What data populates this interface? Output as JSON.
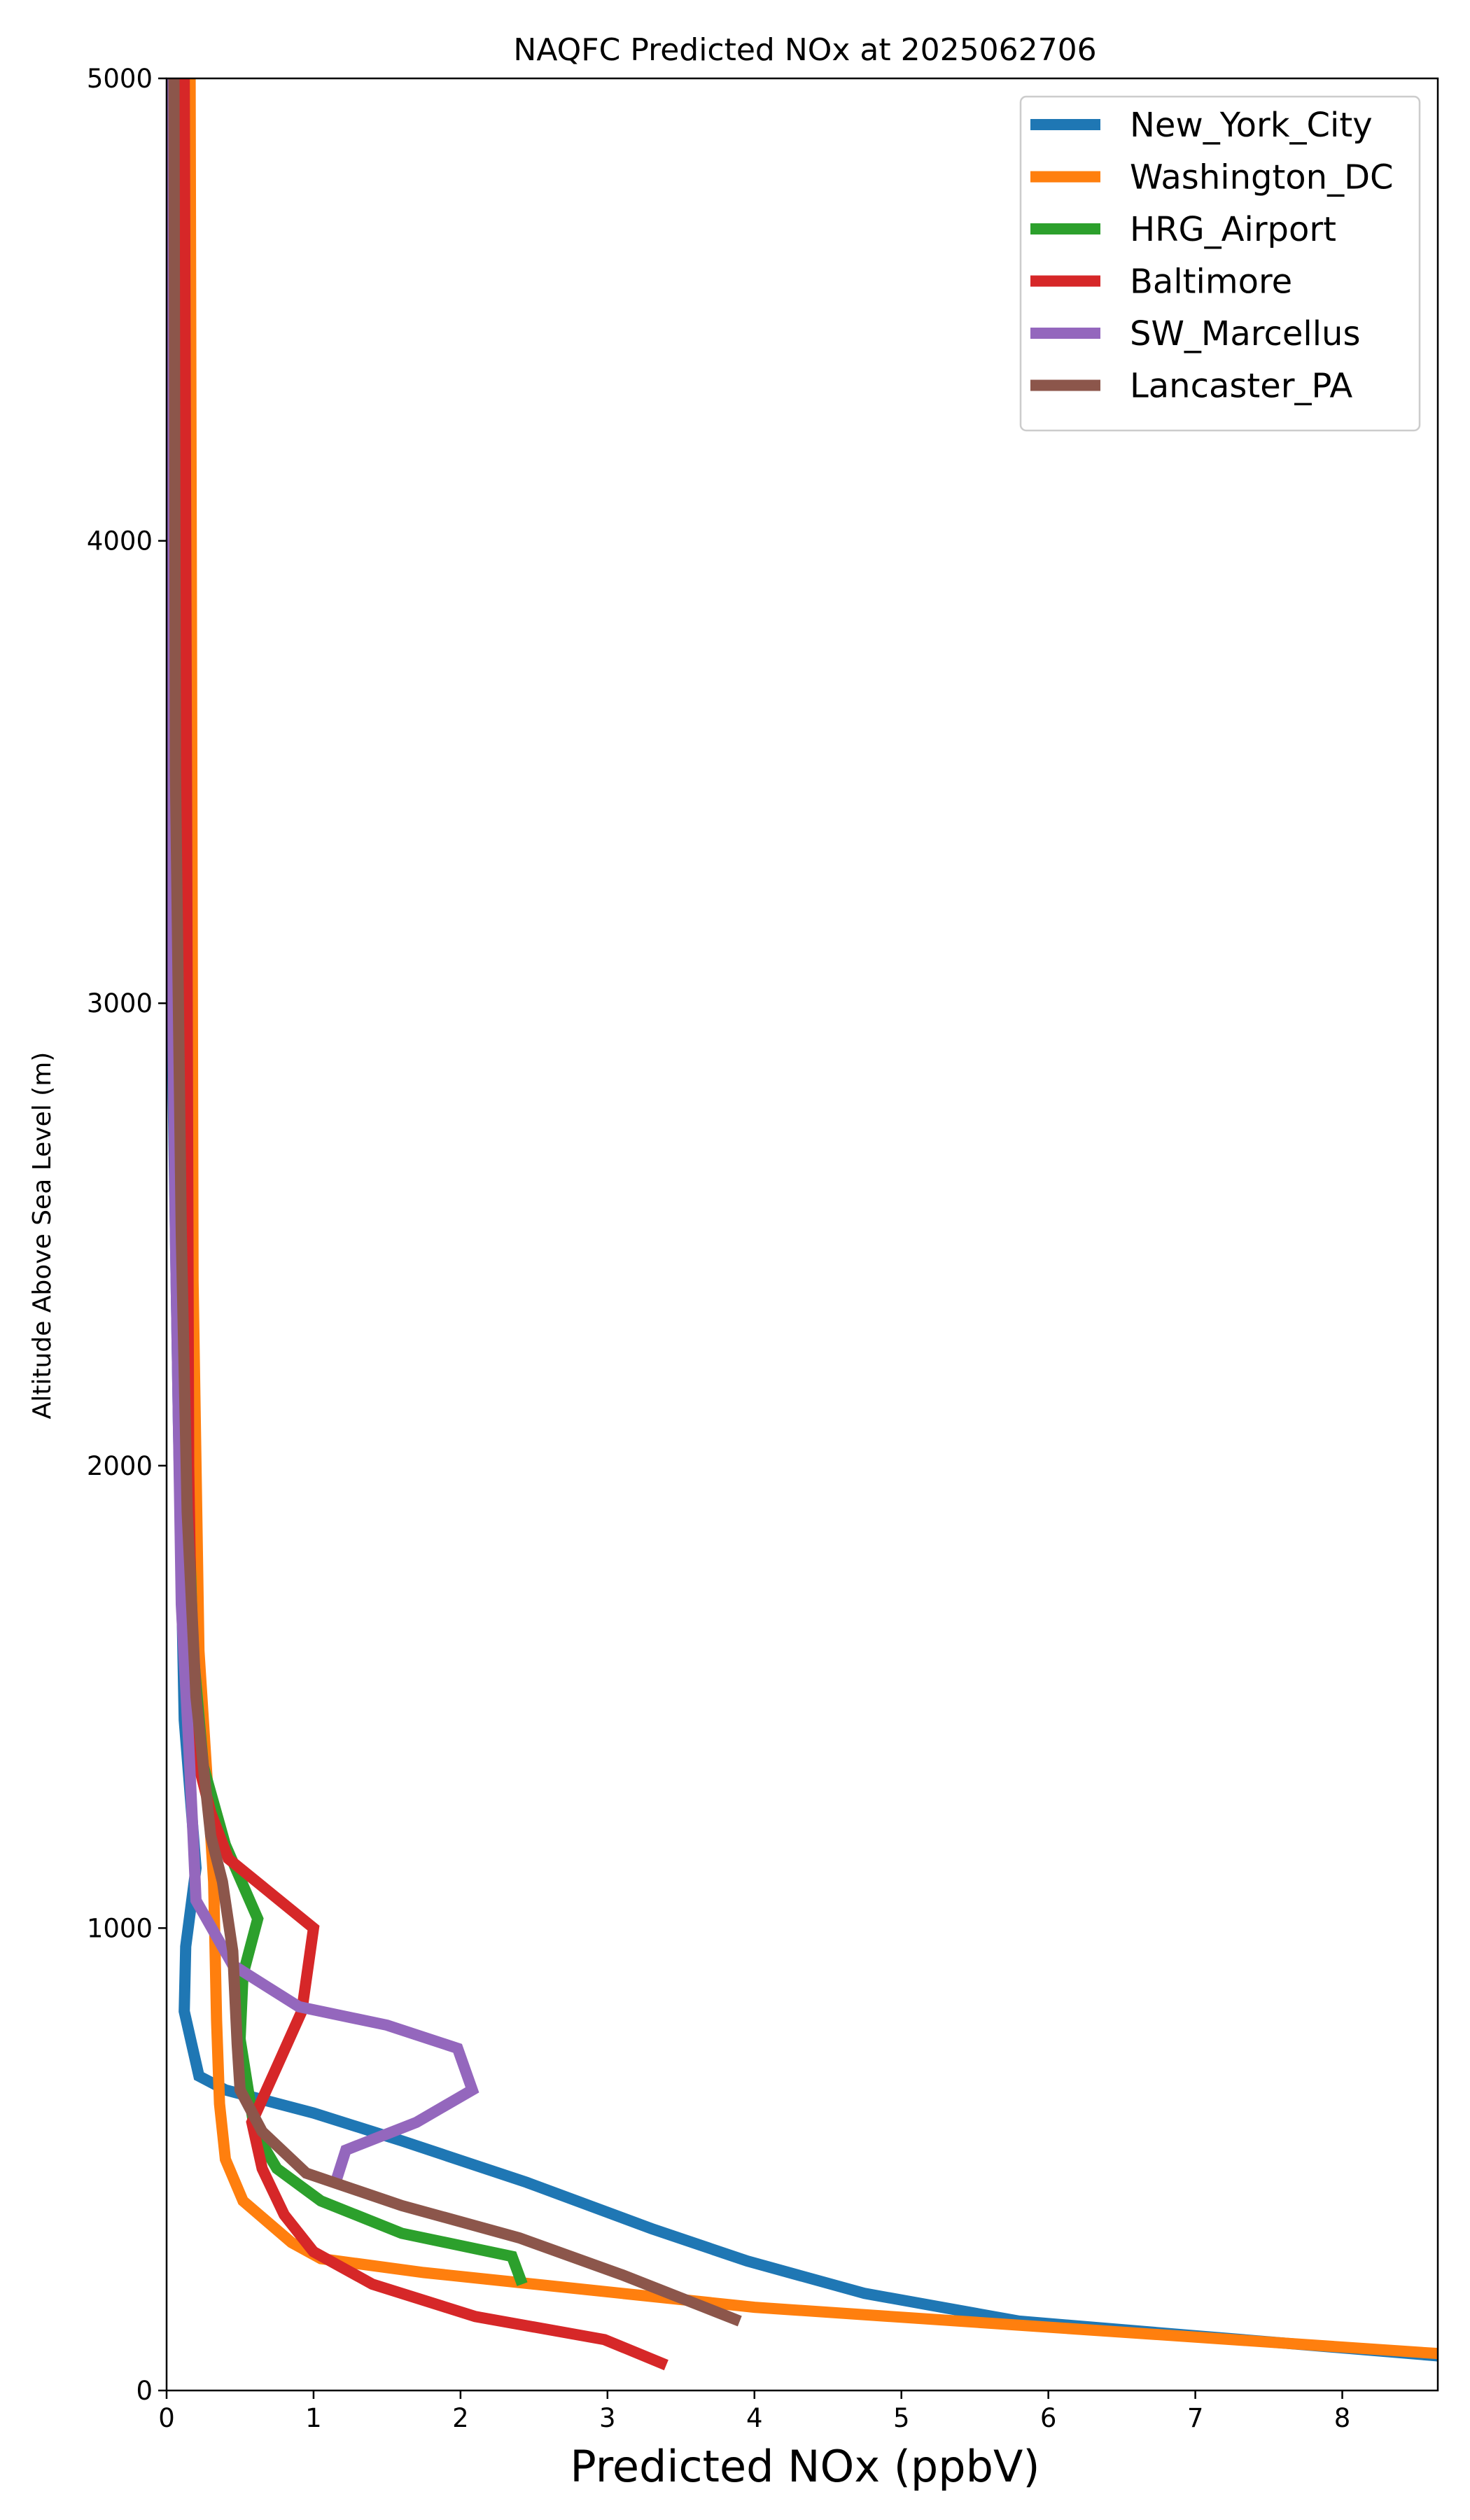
{
  "chart_data": {
    "type": "line",
    "title": "NAQFC Predicted NOx at 2025062706",
    "xlabel": "Predicted NOx (ppbV)",
    "ylabel": "Altitude Above Sea Level (m)",
    "xlim": [
      0,
      8.65
    ],
    "ylim": [
      0,
      5000
    ],
    "xticks": [
      "0",
      "1",
      "2",
      "3",
      "4",
      "5",
      "6",
      "7",
      "8"
    ],
    "yticks": [
      "0",
      "1000",
      "2000",
      "3000",
      "4000",
      "5000"
    ],
    "grid": false,
    "legend_position": "top-right",
    "series": [
      {
        "name": "New_York_City",
        "color": "#1f77b4",
        "points": [
          [
            8.65,
            75
          ],
          [
            5.8,
            150
          ],
          [
            4.75,
            210
          ],
          [
            3.95,
            280
          ],
          [
            3.3,
            350
          ],
          [
            2.45,
            450
          ],
          [
            1.6,
            540
          ],
          [
            1.0,
            600
          ],
          [
            0.4,
            650
          ],
          [
            0.22,
            680
          ],
          [
            0.12,
            820
          ],
          [
            0.13,
            960
          ],
          [
            0.2,
            1130
          ],
          [
            0.12,
            1450
          ],
          [
            0.08,
            2100
          ],
          [
            0.04,
            2900
          ],
          [
            0.03,
            5000
          ]
        ]
      },
      {
        "name": "Washington_DC",
        "color": "#ff7f0e",
        "points": [
          [
            8.65,
            80
          ],
          [
            4.0,
            180
          ],
          [
            1.75,
            255
          ],
          [
            1.05,
            285
          ],
          [
            0.85,
            320
          ],
          [
            0.52,
            410
          ],
          [
            0.4,
            500
          ],
          [
            0.36,
            620
          ],
          [
            0.34,
            800
          ],
          [
            0.32,
            1100
          ],
          [
            0.22,
            1600
          ],
          [
            0.18,
            2400
          ],
          [
            0.16,
            5000
          ]
        ]
      },
      {
        "name": "HRG_Airport",
        "color": "#2ca02c",
        "points": [
          [
            2.42,
            230
          ],
          [
            2.35,
            290
          ],
          [
            1.6,
            340
          ],
          [
            1.05,
            410
          ],
          [
            0.75,
            480
          ],
          [
            0.6,
            560
          ],
          [
            0.55,
            660
          ],
          [
            0.5,
            760
          ],
          [
            0.52,
            900
          ],
          [
            0.62,
            1020
          ],
          [
            0.4,
            1180
          ],
          [
            0.25,
            1350
          ],
          [
            0.18,
            1600
          ],
          [
            0.12,
            2200
          ],
          [
            0.1,
            5000
          ]
        ]
      },
      {
        "name": "Baltimore",
        "color": "#d62728",
        "points": [
          [
            3.4,
            55
          ],
          [
            2.98,
            110
          ],
          [
            2.1,
            160
          ],
          [
            1.4,
            230
          ],
          [
            1.0,
            300
          ],
          [
            0.8,
            380
          ],
          [
            0.65,
            480
          ],
          [
            0.58,
            580
          ],
          [
            0.75,
            700
          ],
          [
            0.92,
            820
          ],
          [
            1.0,
            1000
          ],
          [
            0.42,
            1150
          ],
          [
            0.3,
            1250
          ],
          [
            0.18,
            1400
          ],
          [
            0.15,
            2000
          ],
          [
            0.12,
            5000
          ]
        ]
      },
      {
        "name": "SW_Marcellus",
        "color": "#9467bd",
        "points": [
          [
            1.15,
            450
          ],
          [
            1.22,
            520
          ],
          [
            1.7,
            580
          ],
          [
            2.08,
            650
          ],
          [
            1.98,
            740
          ],
          [
            1.5,
            790
          ],
          [
            0.9,
            830
          ],
          [
            0.45,
            920
          ],
          [
            0.2,
            1060
          ],
          [
            0.18,
            1200
          ],
          [
            0.15,
            1400
          ],
          [
            0.1,
            1700
          ],
          [
            0.06,
            2500
          ],
          [
            0.03,
            3300
          ],
          [
            0.02,
            5000
          ]
        ]
      },
      {
        "name": "Lancaster_PA",
        "color": "#8c564b",
        "points": [
          [
            3.9,
            150
          ],
          [
            3.1,
            250
          ],
          [
            2.4,
            330
          ],
          [
            1.6,
            400
          ],
          [
            0.95,
            470
          ],
          [
            0.65,
            560
          ],
          [
            0.5,
            650
          ],
          [
            0.48,
            750
          ],
          [
            0.45,
            950
          ],
          [
            0.38,
            1100
          ],
          [
            0.3,
            1200
          ],
          [
            0.2,
            1500
          ],
          [
            0.14,
            1900
          ],
          [
            0.1,
            2500
          ],
          [
            0.06,
            3500
          ],
          [
            0.05,
            5000
          ]
        ]
      }
    ]
  }
}
